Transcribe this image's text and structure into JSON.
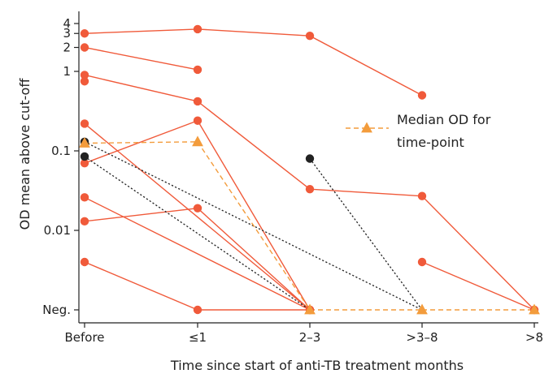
{
  "chart_data": {
    "type": "line",
    "xlabel": "Time since start of anti-TB treatment months",
    "ylabel": "OD mean above cut-off",
    "x_categories": [
      "Before",
      "≤1",
      "2–3",
      ">3–8",
      ">8"
    ],
    "y_scale": "log",
    "y_ticks": [
      {
        "value": 4,
        "label": "4"
      },
      {
        "value": 3,
        "label": "3"
      },
      {
        "value": 2,
        "label": "2"
      },
      {
        "value": 1,
        "label": "1"
      },
      {
        "value": 0.1,
        "label": "0.1"
      },
      {
        "value": 0.01,
        "label": "0.01"
      },
      {
        "value": "Neg.",
        "label": "Neg."
      }
    ],
    "ylim": [
      0.001,
      5
    ],
    "colors": {
      "patient_series": "#f05a3a",
      "dotted_series": "#222222",
      "median": "#f39c3c"
    },
    "patient_series": [
      {
        "values": [
          3.0,
          3.4,
          2.8,
          0.5,
          null
        ]
      },
      {
        "values": [
          2.0,
          1.05,
          null,
          null,
          null
        ]
      },
      {
        "values": [
          0.9,
          0.42,
          0.033,
          0.027,
          "Neg."
        ]
      },
      {
        "values": [
          0.75,
          null,
          null,
          null,
          null
        ]
      },
      {
        "values": [
          0.22,
          null,
          "Neg.",
          null,
          null
        ]
      },
      {
        "values": [
          0.07,
          0.24,
          "Neg.",
          null,
          null
        ]
      },
      {
        "values": [
          0.026,
          null,
          "Neg.",
          null,
          null
        ]
      },
      {
        "values": [
          0.013,
          0.019,
          "Neg.",
          null,
          null
        ]
      },
      {
        "values": [
          null,
          null,
          null,
          0.004,
          "Neg."
        ]
      },
      {
        "values": [
          0.004,
          "Neg.",
          "Neg.",
          null,
          null
        ]
      }
    ],
    "dotted_series": [
      {
        "values": [
          0.085,
          null,
          "Neg.",
          null,
          null
        ]
      },
      {
        "values": [
          0.13,
          null,
          null,
          "Neg.",
          null
        ]
      },
      {
        "values": [
          null,
          null,
          0.08,
          "Neg.",
          null
        ]
      }
    ],
    "median_series": {
      "name": "Median OD for time-point",
      "values": [
        0.125,
        0.13,
        "Neg.",
        "Neg.",
        "Neg."
      ]
    },
    "legend": {
      "line1": "Median OD for",
      "line2": "time-point",
      "placement": "right-middle"
    }
  }
}
